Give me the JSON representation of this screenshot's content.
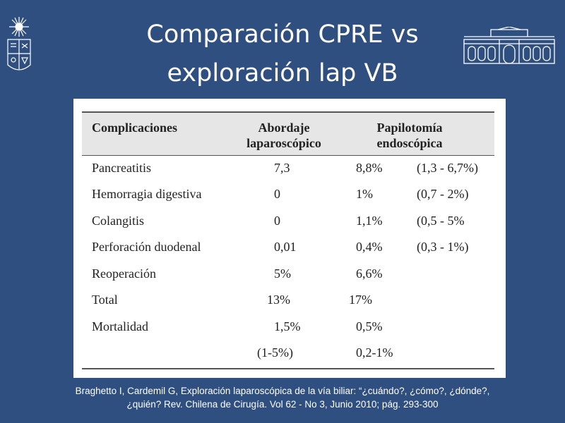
{
  "slide": {
    "title_line1": "Comparación CPRE vs",
    "title_line2": "exploración lap VB"
  },
  "logos": {
    "left": "university-crest-icon",
    "right": "building-facade-icon"
  },
  "table": {
    "header": {
      "col1": "Complicaciones",
      "col2_line1": "Abordaje",
      "col2_line2": "laparoscópico",
      "col3_line1": "Papilotomía",
      "col3_line2": "endoscópica"
    },
    "rows": [
      {
        "label": "Pancreatitis",
        "lap": "7,3",
        "endo": "8,8%",
        "range": "(1,3 - 6,7%)"
      },
      {
        "label": "Hemorragia digestiva",
        "lap": "0",
        "endo": "1%",
        "range": "(0,7 - 2%)"
      },
      {
        "label": "Colangitis",
        "lap": "0",
        "endo": "1,1%",
        "range": "(0,5 - 5%"
      },
      {
        "label": "Perforación duodenal",
        "lap": "0,01",
        "endo": "0,4%",
        "range": "(0,3 - 1%)"
      },
      {
        "label": "Reoperación",
        "lap": "5%",
        "endo": "6,6%",
        "range": ""
      },
      {
        "label": "Total",
        "lap": "13%",
        "endo": "17%",
        "range": ""
      },
      {
        "label": "Mortalidad",
        "lap": "1,5%",
        "endo": "0,5%",
        "range": ""
      },
      {
        "label": "",
        "lap": "(1-5%)",
        "endo": "0,2-1%",
        "range": ""
      }
    ]
  },
  "footer": {
    "line1": "Braghetto I, Cardemil G, Exploración laparoscópica de la vía biliar: “¿cuándo?, ¿cómo?, ¿dónde?,",
    "line2": "¿quién? Rev. Chilena de Cirugía. Vol 62 - No 3, Junio 2010; pág. 293-300"
  }
}
